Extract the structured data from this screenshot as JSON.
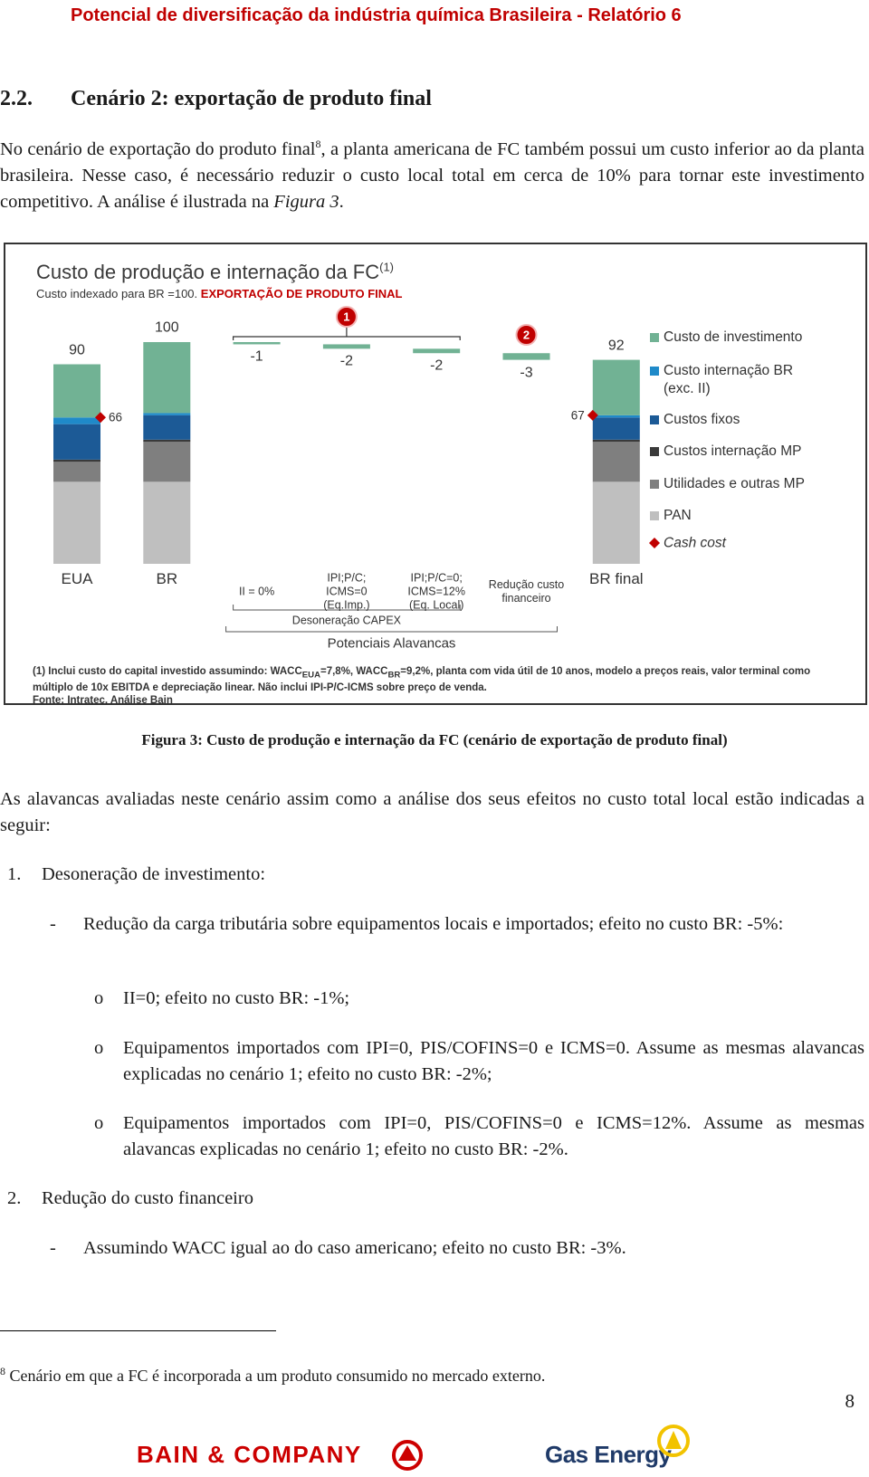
{
  "header": {
    "title": "Potencial de diversificação da indústria química Brasileira - Relatório 6"
  },
  "section": {
    "number": "2.2.",
    "title": "Cenário 2: exportação de produto final"
  },
  "intro": {
    "text": "No cenário de exportação do produto final",
    "footnote_ref": "8",
    "text_cont": ", a planta americana de FC também possui um custo inferior ao da planta brasileira. Nesse caso, é necessário reduzir o custo local total em cerca de 10% para tornar este investimento competitivo. A análise é ilustrada na ",
    "figure_ref": "Figura 3",
    "end": "."
  },
  "chart_data": {
    "type": "waterfall",
    "title": "Custo de produção e internação da FC",
    "title_note": "(1)",
    "subtitle": "Custo indexado para BR =100.",
    "subtitle_highlight": "EXPORTAÇÃO DE PRODUTO FINAL",
    "categories": [
      "EUA",
      "BR",
      "II = 0%",
      "IPI;P/C;\nICMS=0\n(Eq.Imp.)",
      "IPI;P/C=0;\nICMS=12%\n(Eq. Local)",
      "Redução custo\nfinanceiro",
      "BR final"
    ],
    "series": [
      {
        "name": "Custo de investimento",
        "color": "#71b294",
        "values": [
          24,
          32,
          null,
          null,
          null,
          null,
          25
        ]
      },
      {
        "name": "Custo internação BR (exc. II)",
        "color": "#1f8ac9",
        "values": [
          3,
          1,
          null,
          null,
          null,
          null,
          1
        ]
      },
      {
        "name": "Custos fixos",
        "color": "#1c5a96",
        "values": [
          16,
          11,
          null,
          null,
          null,
          null,
          10
        ]
      },
      {
        "name": "Custos internação MP",
        "color": "#3a3a3a",
        "values": [
          1,
          1,
          null,
          null,
          null,
          null,
          1
        ]
      },
      {
        "name": "Utilidades e outras MP",
        "color": "#7f7f7f",
        "values": [
          9,
          18,
          null,
          null,
          null,
          null,
          18
        ]
      },
      {
        "name": "PAN",
        "color": "#bfbfbf",
        "values": [
          37,
          37,
          null,
          null,
          null,
          null,
          37
        ]
      }
    ],
    "totals": [
      90,
      100,
      null,
      null,
      null,
      null,
      92
    ],
    "deltas": [
      null,
      null,
      -1,
      -2,
      -2,
      -3,
      null
    ],
    "delta_color": "#71b294",
    "cash_cost": {
      "name": "Cash cost",
      "color": "#c00000",
      "values": [
        66,
        null,
        null,
        null,
        null,
        null,
        67
      ]
    },
    "ylim": [
      0,
      100
    ],
    "callouts": [
      "1",
      "2"
    ],
    "callout_color": "#c00000",
    "groups": {
      "capex": "Desoneração CAPEX",
      "levers": "Potenciais Alavancas"
    },
    "footnote": {
      "text": "(1) Inclui custo do capital investido assumindo: WACC",
      "sub1": "EUA",
      "text2": "=7,8%, WACC",
      "sub2": "BR",
      "text3": "=9,2%, planta com vida útil de 10 anos, modelo a preços reais, valor terminal como múltiplo de 10x EBITDA e depreciação linear. Não inclui IPI-P/C-ICMS sobre preço de venda."
    },
    "source": "Fonte: Intratec, Análise Bain"
  },
  "figure": {
    "caption": "Figura 3: Custo de produção e internação da FC (cenário de exportação de produto final)"
  },
  "body": {
    "paragraph": "As alavancas avaliadas neste cenário assim como a análise dos seus efeitos no custo total local estão indicadas a seguir:",
    "list": [
      {
        "number": "1.",
        "text": "Desoneração de investimento:",
        "items": [
          {
            "bullet": "-",
            "text": "Redução da carga tributária sobre equipamentos locais e importados; efeito no custo BR: -5%:",
            "subitems": [
              {
                "bullet": "o",
                "text": "II=0; efeito no custo BR: -1%;"
              },
              {
                "bullet": "o",
                "text": "Equipamentos importados com IPI=0, PIS/COFINS=0 e ICMS=0. Assume as mesmas alavancas explicadas no cenário 1; efeito no custo BR: -2%;"
              },
              {
                "bullet": "o",
                "text": "Equipamentos importados com IPI=0, PIS/COFINS=0 e ICMS=12%. Assume as mesmas alavancas explicadas no cenário 1; efeito no custo BR: -2%."
              }
            ]
          }
        ]
      },
      {
        "number": "2.",
        "text": "Redução do custo financeiro",
        "items": [
          {
            "bullet": "-",
            "text": "Assumindo WACC igual ao do caso americano; efeito no custo BR: -3%."
          }
        ]
      }
    ]
  },
  "footnote": {
    "number": "8",
    "text": "Cenário em que a FC é incorporada a um produto consumido no mercado externo."
  },
  "page_number": "8",
  "logos": {
    "bain": "BAIN & COMPANY",
    "gas_energy": "Gas Energy"
  }
}
